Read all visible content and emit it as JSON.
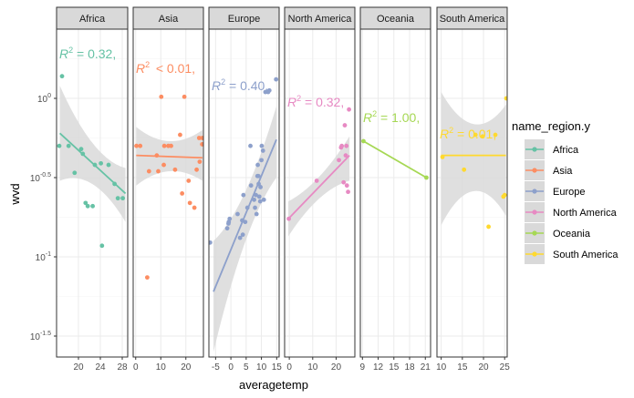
{
  "chart_data": {
    "type": "scatter",
    "facet_by": "name_region.y",
    "xlabel": "averagetemp",
    "ylabel": "wvd",
    "y_scale": "log10",
    "ylim_log10": [
      -1.6,
      0.26
    ],
    "y_ticks": [
      {
        "log10": 0,
        "label": "10",
        "sup": "0"
      },
      {
        "log10": -0.5,
        "label": "10",
        "sup": "-0.5"
      },
      {
        "log10": -1,
        "label": "10",
        "sup": "-1"
      },
      {
        "log10": -1.5,
        "label": "10",
        "sup": "-1.5"
      }
    ],
    "grid": true,
    "panel_background": "#ffffff",
    "grid_color": "#ebebeb",
    "ribbon_color": "#d9d9d9",
    "legend": {
      "title": "name_region.y",
      "placement": "right",
      "entries": [
        "Africa",
        "Asia",
        "Europe",
        "North America",
        "Oceania",
        "South America"
      ]
    },
    "panels": [
      {
        "name": "Africa",
        "color": "#66c2a5",
        "xlim": [
          16,
          29
        ],
        "x_ticks": [
          20,
          24,
          28
        ],
        "r2_label": "= 0.32,",
        "fit": {
          "x1": 16.6,
          "y1": -0.22,
          "x2": 28.6,
          "y2": -0.6,
          "band_lo": [
            -0.52,
            -0.78
          ],
          "band_hi": [
            0.08,
            -0.44
          ]
        },
        "points": [
          [
            17,
            0.14
          ],
          [
            16.5,
            -0.3
          ],
          [
            18.2,
            -0.3
          ],
          [
            19.3,
            -0.47
          ],
          [
            20.5,
            -0.32
          ],
          [
            20.8,
            -0.35
          ],
          [
            21.3,
            -0.66
          ],
          [
            21.7,
            -0.68
          ],
          [
            22.6,
            -0.68
          ],
          [
            23,
            -0.42
          ],
          [
            24.1,
            -0.41
          ],
          [
            24.3,
            -0.93
          ],
          [
            25.5,
            -0.42
          ],
          [
            26.6,
            -0.54
          ],
          [
            27.2,
            -0.63
          ],
          [
            28.1,
            -0.63
          ]
        ]
      },
      {
        "name": "Asia",
        "color": "#fc8d62",
        "xlim": [
          -1,
          27
        ],
        "x_ticks": [
          0,
          10,
          20
        ],
        "r2_label": " < 0.01,",
        "fit": {
          "x1": 0.2,
          "y1": -0.36,
          "x2": 26.6,
          "y2": -0.375,
          "band_lo": [
            -0.55,
            -0.52
          ],
          "band_hi": [
            -0.18,
            -0.2
          ]
        },
        "points": [
          [
            0.3,
            -0.3
          ],
          [
            1.8,
            -0.3
          ],
          [
            4.6,
            -1.13
          ],
          [
            5.3,
            -0.46
          ],
          [
            8.4,
            -0.36
          ],
          [
            9,
            -0.46
          ],
          [
            10.2,
            0.01
          ],
          [
            11.2,
            -0.42
          ],
          [
            11.4,
            -0.3
          ],
          [
            13,
            -0.3
          ],
          [
            14.1,
            -0.3
          ],
          [
            15.7,
            -0.45
          ],
          [
            17.7,
            -0.23
          ],
          [
            18.5,
            -0.6
          ],
          [
            19.4,
            0.01
          ],
          [
            21.1,
            -0.52
          ],
          [
            21.6,
            -0.66
          ],
          [
            23.4,
            -0.69
          ],
          [
            24.3,
            -0.45
          ],
          [
            25.3,
            -0.25
          ],
          [
            25.5,
            -0.4
          ],
          [
            26.5,
            -0.29
          ],
          [
            26.6,
            -0.25
          ]
        ]
      },
      {
        "name": "Europe",
        "color": "#8da0cb",
        "xlim": [
          -7.2,
          15.8
        ],
        "x_ticks": [
          -5,
          0,
          5,
          10,
          15
        ],
        "r2_label": "= 0.40,",
        "fit": {
          "x1": -5.7,
          "y1": -1.22,
          "x2": 14.9,
          "y2": -0.26,
          "band_lo": [
            -1.6,
            -0.5
          ],
          "band_hi": [
            -0.9,
            -0.05
          ]
        },
        "points": [
          [
            -6.8,
            -0.91
          ],
          [
            -1.2,
            -0.82
          ],
          [
            -0.8,
            -0.79
          ],
          [
            -0.7,
            -0.78
          ],
          [
            -0.4,
            -0.76
          ],
          [
            2.2,
            -0.73
          ],
          [
            3,
            -0.88
          ],
          [
            3.7,
            -0.77
          ],
          [
            3.9,
            -0.86
          ],
          [
            4.1,
            -0.61
          ],
          [
            4.7,
            -0.78
          ],
          [
            5.4,
            -0.69
          ],
          [
            6.6,
            -0.55
          ],
          [
            6.4,
            -0.3
          ],
          [
            7.6,
            -0.64
          ],
          [
            7.9,
            -0.69
          ],
          [
            8.2,
            -0.61
          ],
          [
            8.4,
            -0.73
          ],
          [
            8.8,
            -0.42
          ],
          [
            8.7,
            -0.49
          ],
          [
            9,
            -0.49
          ],
          [
            9.1,
            -0.54
          ],
          [
            9.3,
            -0.62
          ],
          [
            9.6,
            -0.65
          ],
          [
            9.7,
            -0.56
          ],
          [
            10,
            -0.39
          ],
          [
            10.1,
            -0.3
          ],
          [
            10.5,
            -0.33
          ],
          [
            10.8,
            -0.64
          ],
          [
            11.3,
            0.04
          ],
          [
            12.2,
            0.04
          ],
          [
            12.6,
            0.05
          ],
          [
            14.8,
            0.12
          ]
        ]
      },
      {
        "name": "North America",
        "color": "#e78ac3",
        "xlim": [
          -2,
          28
        ],
        "x_ticks": [
          0,
          10,
          20
        ],
        "r2_label": "= 0.32,",
        "fit": {
          "x1": -0.4,
          "y1": -0.76,
          "x2": 25.7,
          "y2": -0.36,
          "band_lo": [
            -0.87,
            -0.52
          ],
          "band_hi": [
            -0.65,
            -0.24
          ]
        },
        "points": [
          [
            -0.2,
            -0.76
          ],
          [
            11.7,
            -0.52
          ],
          [
            21.2,
            -0.39
          ],
          [
            22.1,
            -0.31
          ],
          [
            22.4,
            -0.3
          ],
          [
            23.2,
            -0.53
          ],
          [
            23.7,
            -0.17
          ],
          [
            24.1,
            -0.36
          ],
          [
            24.4,
            -0.3
          ],
          [
            24.6,
            -0.55
          ],
          [
            25.1,
            -0.59
          ],
          [
            25.5,
            -0.07
          ]
        ]
      },
      {
        "name": "Oceania",
        "color": "#a6d854",
        "xlim": [
          8.6,
          22
        ],
        "x_ticks": [
          9,
          12,
          15,
          18,
          21
        ],
        "r2_label": "= 1.00,",
        "fit": {
          "x1": 9.2,
          "y1": -0.27,
          "x2": 21.2,
          "y2": -0.5,
          "band_lo": [
            -0.27,
            -0.5
          ],
          "band_hi": [
            -0.27,
            -0.5
          ]
        },
        "points": [
          [
            9.2,
            -0.27
          ],
          [
            21.2,
            -0.5
          ]
        ]
      },
      {
        "name": "South America",
        "color": "#ffd92f",
        "xlim": [
          9,
          25.6
        ],
        "x_ticks": [
          10,
          15,
          20,
          25
        ],
        "r2_label": "= 0.01,",
        "fit": {
          "x1": 10,
          "y1": -0.36,
          "x2": 25.3,
          "y2": -0.36,
          "band_lo": [
            -0.8,
            -0.74
          ],
          "band_hi": [
            0.04,
            -0.04
          ]
        },
        "points": [
          [
            10.3,
            -0.37
          ],
          [
            15.4,
            -0.45
          ],
          [
            18.1,
            -0.23
          ],
          [
            19.8,
            -0.24
          ],
          [
            21.2,
            -0.81
          ],
          [
            22.8,
            -0.23
          ],
          [
            24.7,
            -0.62
          ],
          [
            25,
            -0.61
          ],
          [
            25.4,
            0.0
          ]
        ]
      }
    ]
  }
}
